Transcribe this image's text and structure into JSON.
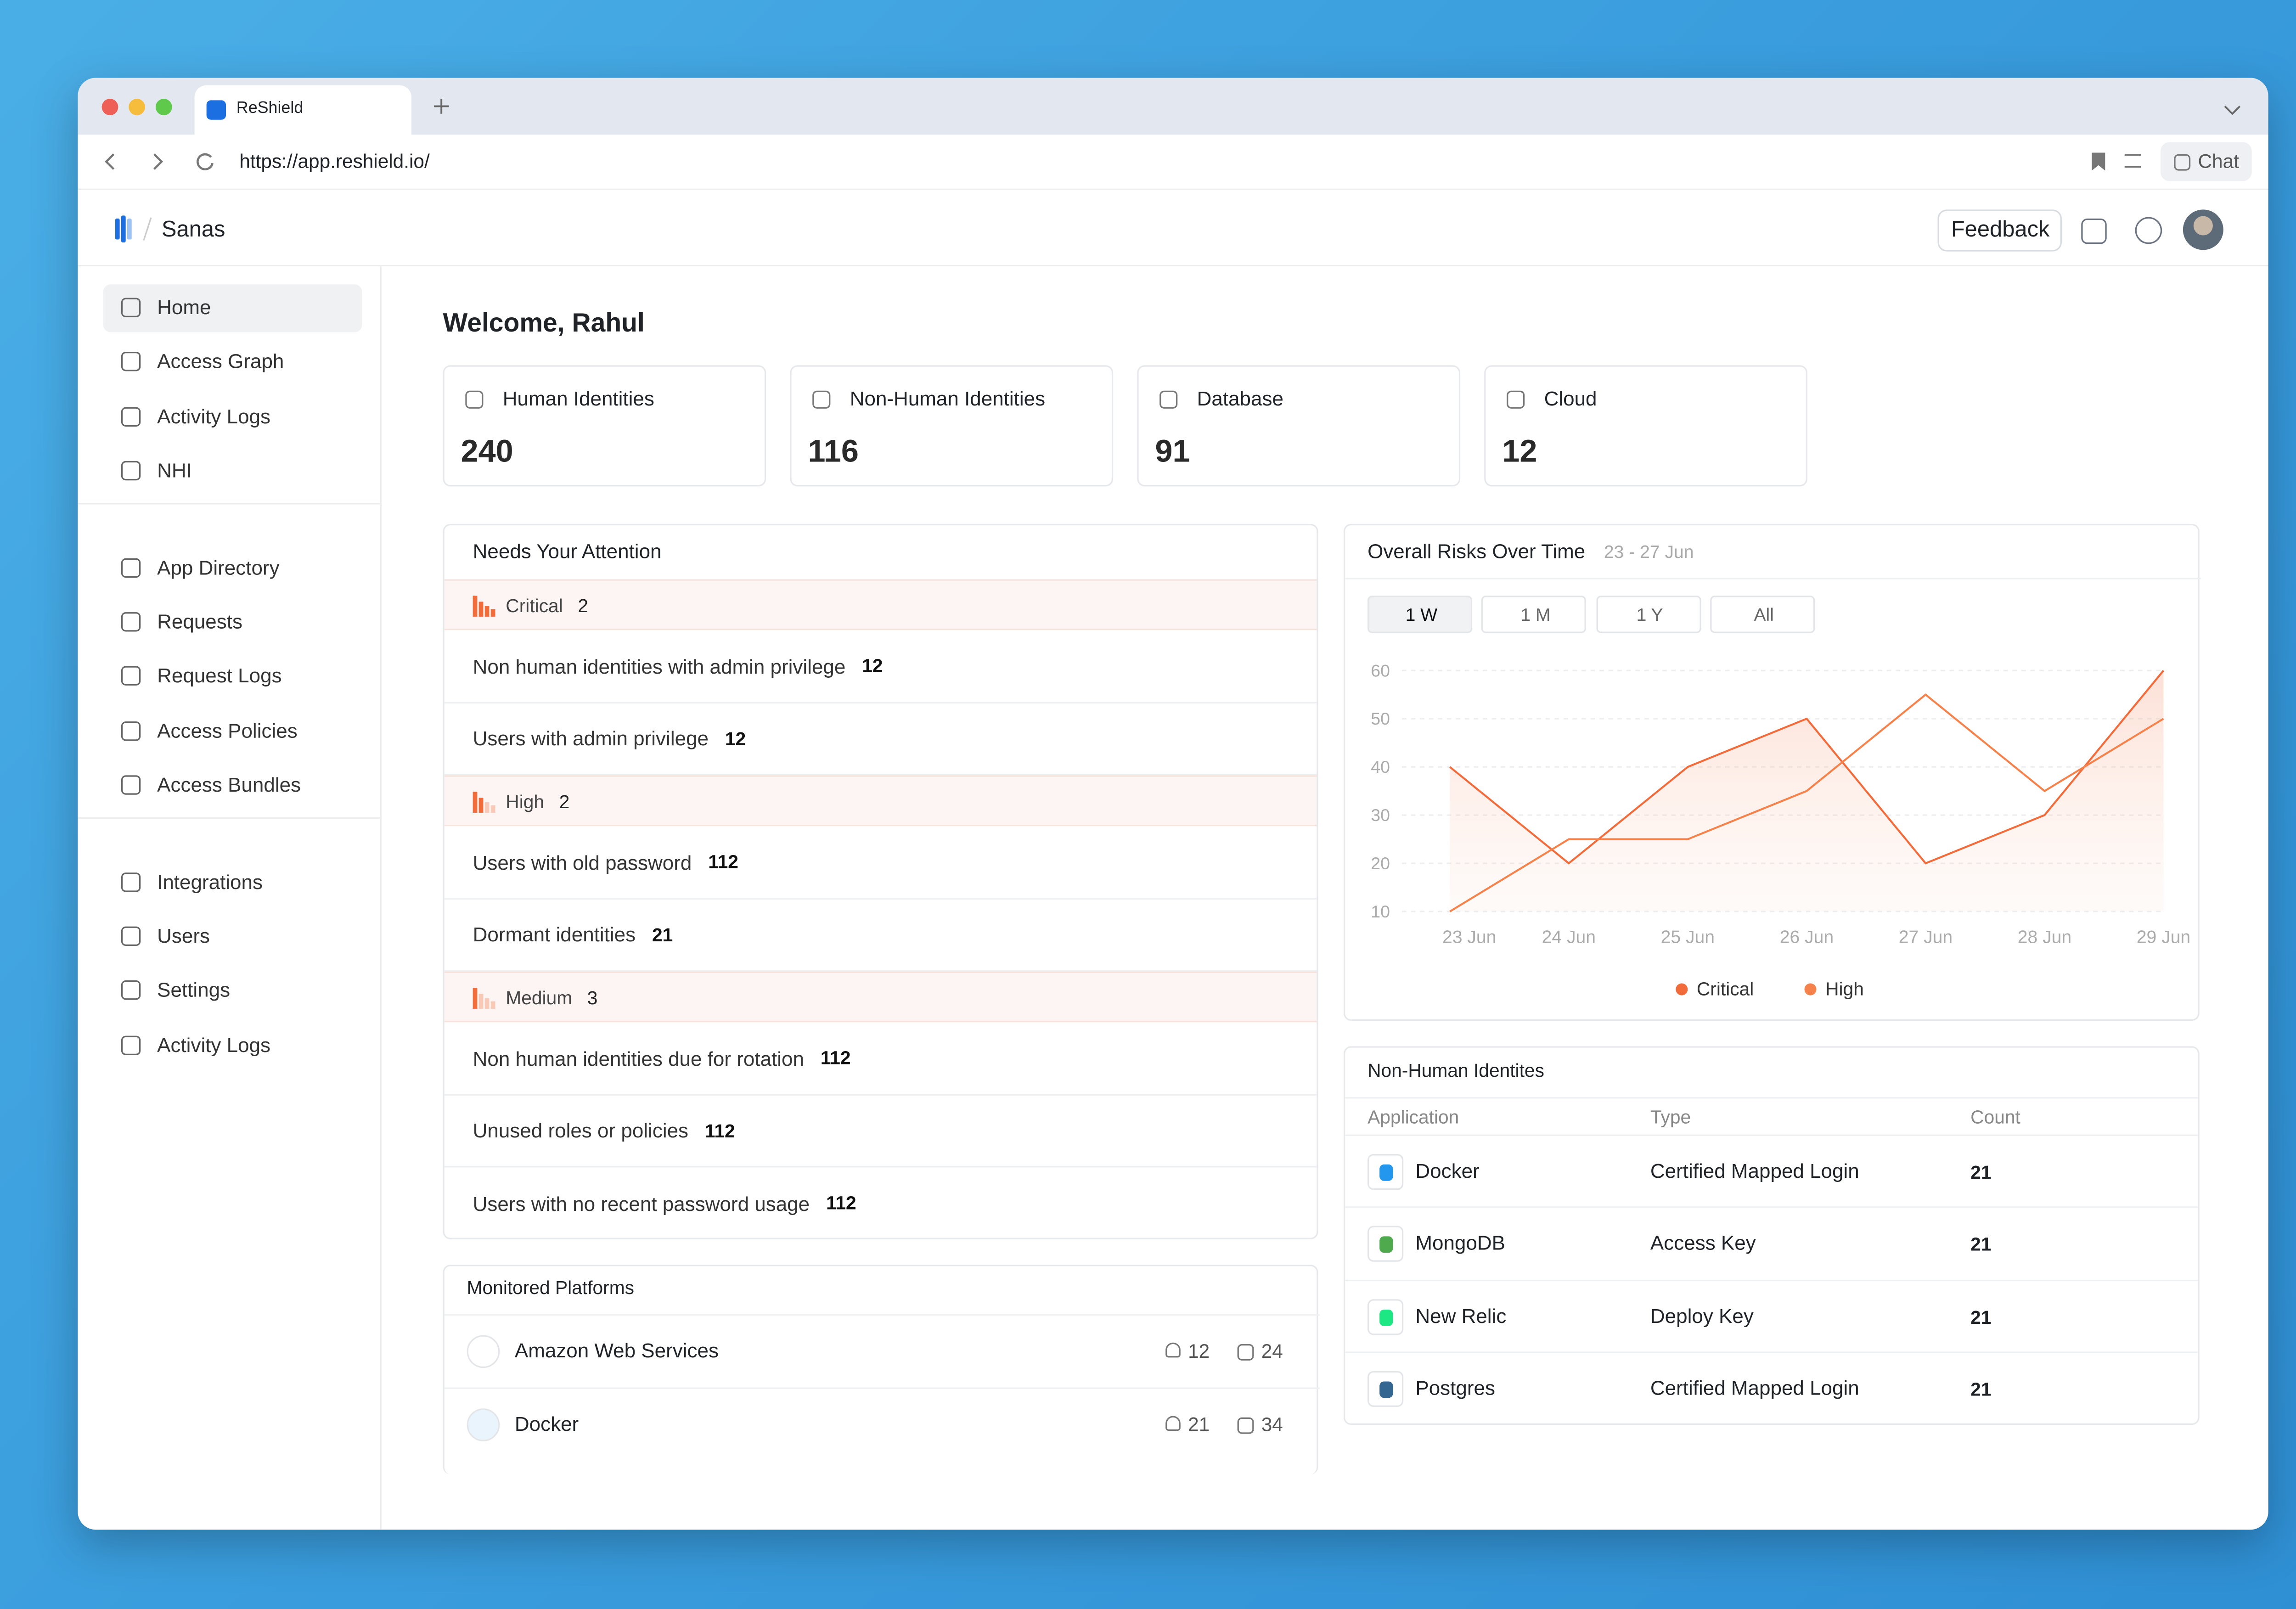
{
  "browser": {
    "tab_title": "ReShield",
    "url": "https://app.reshield.io/",
    "chat": "Chat"
  },
  "header": {
    "workspace": "Sanas",
    "feedback": "Feedback"
  },
  "sidebar": {
    "groups": [
      [
        "Home",
        "Access Graph",
        "Activity Logs",
        "NHI"
      ],
      [
        "App Directory",
        "Requests",
        "Request Logs",
        "Access Policies",
        "Access Bundles"
      ],
      [
        "Integrations",
        "Users",
        "Settings",
        "Activity Logs"
      ]
    ]
  },
  "welcome": "Welcome, Rahul",
  "stats": [
    {
      "label": "Human Identities",
      "value": 240
    },
    {
      "label": "Non-Human Identities",
      "value": 116
    },
    {
      "label": "Database",
      "value": 91
    },
    {
      "label": "Cloud",
      "value": 12
    }
  ],
  "attention": {
    "title": "Needs Your Attention",
    "groups": [
      {
        "level": "Critical",
        "count": 2,
        "items": [
          {
            "label": "Non human identities with admin privilege",
            "count": 12
          },
          {
            "label": "Users with admin privilege",
            "count": 12
          }
        ]
      },
      {
        "level": "High",
        "count": 2,
        "items": [
          {
            "label": "Users with old password",
            "count": 112
          },
          {
            "label": "Dormant identities",
            "count": 21
          }
        ]
      },
      {
        "level": "Medium",
        "count": 3,
        "items": [
          {
            "label": "Non human identities due for rotation",
            "count": 112
          },
          {
            "label": "Unused roles or policies",
            "count": 112
          },
          {
            "label": "Users with no recent password usage",
            "count": 112
          }
        ]
      }
    ]
  },
  "platforms": {
    "title": "Monitored Platforms",
    "rows": [
      {
        "name": "Amazon Web Services",
        "users": 12,
        "bots": 24
      },
      {
        "name": "Docker",
        "users": 21,
        "bots": 34
      }
    ]
  },
  "chart_data": {
    "type": "line",
    "title": "Overall Risks Over Time",
    "subtitle": "23 - 27 Jun",
    "range_buttons": [
      "1 W",
      "1 M",
      "1 Y",
      "All"
    ],
    "categories": [
      "23 Jun",
      "24 Jun",
      "25 Jun",
      "26 Jun",
      "27 Jun",
      "28 Jun",
      "29 Jun"
    ],
    "series": [
      {
        "name": "Critical",
        "color": "#f26b3a",
        "values": [
          40,
          20,
          40,
          50,
          20,
          30,
          60
        ]
      },
      {
        "name": "High",
        "color": "#f5824a",
        "values": [
          10,
          25,
          25,
          35,
          55,
          35,
          50
        ]
      }
    ],
    "ylim": [
      10,
      60
    ],
    "yticks": [
      10,
      20,
      30,
      40,
      50,
      60
    ],
    "grid": true
  },
  "nhi_table": {
    "title": "Non-Human Identites",
    "columns": [
      "Application",
      "Type",
      "Count"
    ],
    "rows": [
      {
        "app": "Docker",
        "type": "Certified Mapped Login",
        "count": 21
      },
      {
        "app": "MongoDB",
        "type": "Access Key",
        "count": 21
      },
      {
        "app": "New Relic",
        "type": "Deploy Key",
        "count": 21
      },
      {
        "app": "Postgres",
        "type": "Certified Mapped Login",
        "count": 21
      }
    ]
  }
}
